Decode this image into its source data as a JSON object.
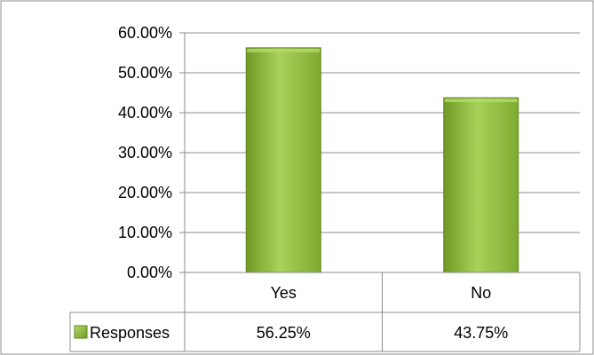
{
  "chart_data": {
    "type": "bar",
    "categories": [
      "Yes",
      "No"
    ],
    "series": [
      {
        "name": "Responses",
        "values": [
          56.25,
          43.75
        ],
        "labels": [
          "56.25%",
          "43.75%"
        ]
      }
    ],
    "y_ticks": [
      "0.00%",
      "10.00%",
      "20.00%",
      "30.00%",
      "40.00%",
      "50.00%",
      "60.00%"
    ],
    "ylim": [
      0,
      60
    ],
    "grid": true,
    "legend_position": "data-table-left",
    "bar_color": "#8DB83A",
    "bar_highlight": "#B5DA6A"
  }
}
